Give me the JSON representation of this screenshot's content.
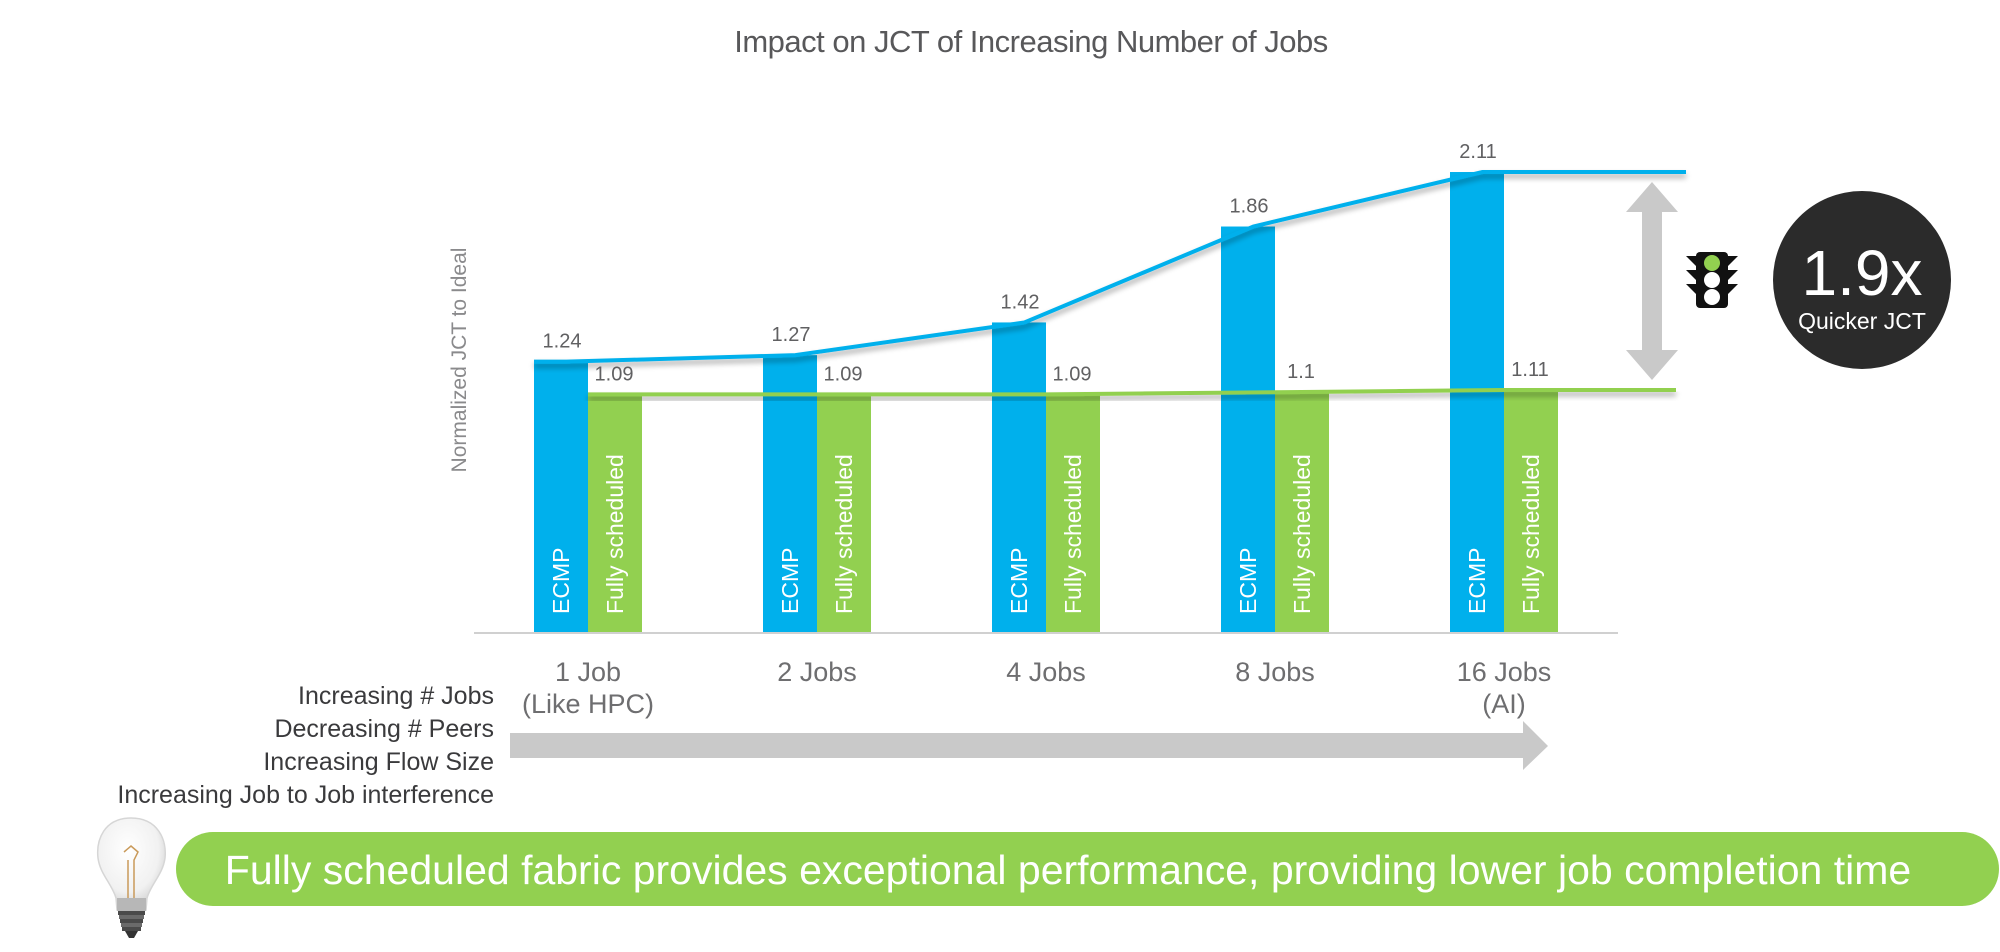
{
  "chart_data": {
    "type": "bar",
    "title": "Impact on JCT of Increasing Number of Jobs",
    "xlabel": "",
    "ylabel": "Normalized JCT to Ideal",
    "ylim": [
      0,
      2.2
    ],
    "grid": false,
    "legend": "none (series names printed inside bars)",
    "categories": [
      {
        "line1": "1 Job",
        "line2": "(Like HPC)"
      },
      {
        "line1": "2 Jobs",
        "line2": ""
      },
      {
        "line1": "4 Jobs",
        "line2": ""
      },
      {
        "line1": "8 Jobs",
        "line2": ""
      },
      {
        "line1": "16 Jobs",
        "line2": "(AI)"
      }
    ],
    "series": [
      {
        "name": "ECMP",
        "color": "#00b0ec",
        "values": [
          1.24,
          1.27,
          1.42,
          1.86,
          2.11
        ],
        "labels": [
          "1.24",
          "1.27",
          "1.42",
          "1.86",
          "2.11"
        ],
        "trend_line": true
      },
      {
        "name": "Fully scheduled",
        "color": "#92d050",
        "values": [
          1.09,
          1.09,
          1.09,
          1.1,
          1.11
        ],
        "labels": [
          "1.09",
          "1.09",
          "1.09",
          "1.1",
          "1.11"
        ],
        "trend_line": true
      }
    ]
  },
  "callout": {
    "value": "1.9x",
    "caption": "Quicker JCT",
    "circle_color": "#2b2b2b",
    "icon": "traffic-light-icon",
    "icon_active_light": "#92d050"
  },
  "factors": [
    "Increasing # Jobs",
    "Decreasing # Peers",
    "Increasing Flow Size",
    "Increasing Job to Job interference"
  ],
  "banner": {
    "text": "Fully scheduled fabric provides exceptional performance, providing lower job completion time",
    "color": "#92d050",
    "icon": "light-bulb-icon"
  },
  "colors": {
    "arrow": "#c9c9c9",
    "axis": "#d0d0d0"
  }
}
